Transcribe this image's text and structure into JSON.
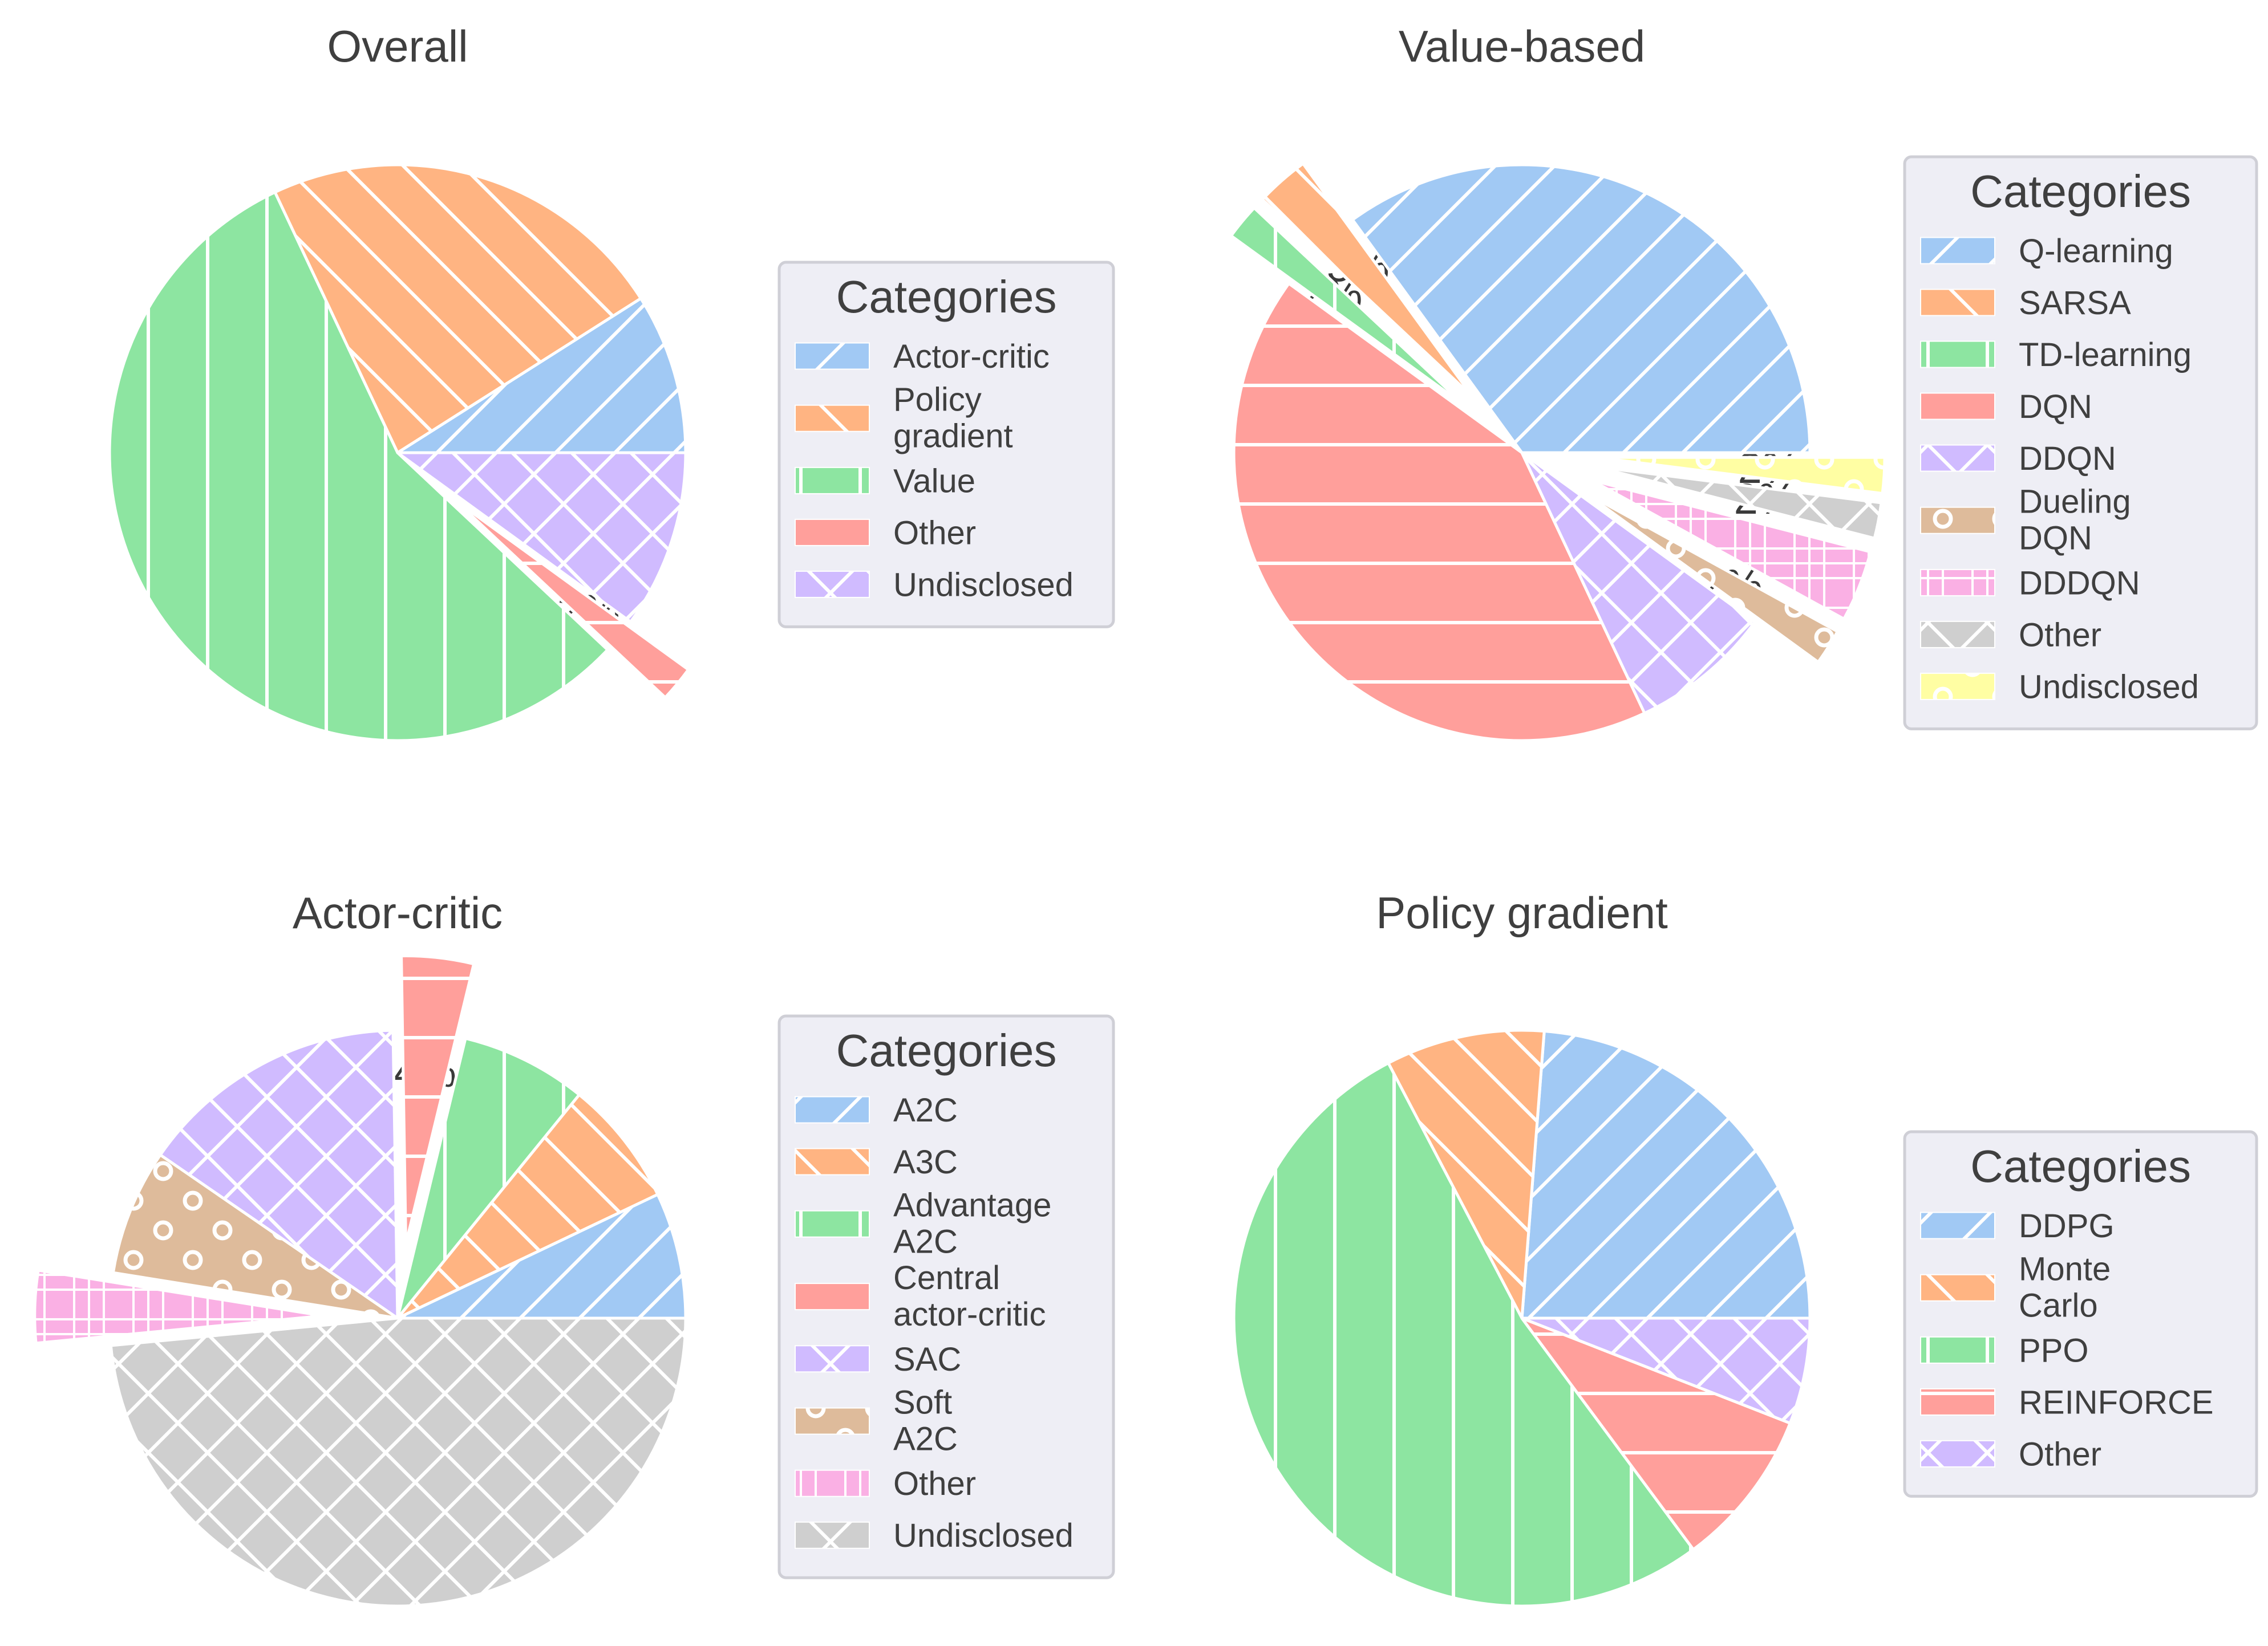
{
  "chart_data": [
    {
      "type": "pie",
      "title": "Overall",
      "legend_title": "Categories",
      "legend_placement": "right",
      "slices": [
        {
          "label": "Actor-critic",
          "display_label": [
            "Actor-critic"
          ],
          "value": 9,
          "pct": "9%",
          "color": "#a1c9f4",
          "hatch": "diagonal"
        },
        {
          "label": "Policy gradient",
          "display_label": [
            "Policy",
            "gradient"
          ],
          "value": 23,
          "pct": "23%",
          "color": "#ffb482",
          "hatch": "antidiagonal"
        },
        {
          "label": "Value",
          "display_label": [
            "Value"
          ],
          "value": 56,
          "pct": "56%",
          "color": "#8de5a1",
          "hatch": "vertical"
        },
        {
          "label": "Other",
          "display_label": [
            "Other"
          ],
          "value": 2,
          "pct": "2%",
          "color": "#ff9f9b",
          "hatch": "horizontal",
          "explode": true
        },
        {
          "label": "Undisclosed",
          "display_label": [
            "Undisclosed"
          ],
          "value": 10,
          "pct": "10%",
          "color": "#d0bbff",
          "hatch": "cross"
        }
      ]
    },
    {
      "type": "pie",
      "title": "Value-based",
      "legend_title": "Categories",
      "legend_placement": "right",
      "slices": [
        {
          "label": "Q-learning",
          "display_label": [
            "Q-learning"
          ],
          "value": 35,
          "pct": "35%",
          "color": "#a1c9f4",
          "hatch": "diagonal"
        },
        {
          "label": "SARSA",
          "display_label": [
            "SARSA"
          ],
          "value": 3,
          "pct": "3%",
          "color": "#ffb482",
          "hatch": "antidiagonal",
          "explode": true
        },
        {
          "label": "TD-learning",
          "display_label": [
            "TD-learning"
          ],
          "value": 2,
          "pct": "2%",
          "color": "#8de5a1",
          "hatch": "vertical",
          "explode": true
        },
        {
          "label": "DQN",
          "display_label": [
            "DQN"
          ],
          "value": 42,
          "pct": "42%",
          "color": "#ff9f9b",
          "hatch": "horizontal"
        },
        {
          "label": "DDQN",
          "display_label": [
            "DDQN"
          ],
          "value": 8,
          "pct": "8%",
          "color": "#d0bbff",
          "hatch": "cross"
        },
        {
          "label": "Dueling DQN",
          "display_label": [
            "Dueling",
            "DQN"
          ],
          "value": 2,
          "pct": "2%",
          "color": "#debb9b",
          "hatch": "circles",
          "explode": true
        },
        {
          "label": "DDDQN",
          "display_label": [
            "DDDQN"
          ],
          "value": 4,
          "pct": "4%",
          "color": "#fab0e4",
          "hatch": "grid",
          "explode": true
        },
        {
          "label": "Other",
          "display_label": [
            "Other"
          ],
          "value": 2,
          "pct": "2%",
          "color": "#cfcfcf",
          "hatch": "cross",
          "explode": true
        },
        {
          "label": "Undisclosed",
          "display_label": [
            "Undisclosed"
          ],
          "value": 2,
          "pct": "2%",
          "color": "#fffea3",
          "hatch": "circles",
          "explode": true
        }
      ]
    },
    {
      "type": "pie",
      "title": "Actor-critic",
      "legend_title": "Categories",
      "legend_placement": "right",
      "slices": [
        {
          "label": "A2C",
          "display_label": [
            "A2C"
          ],
          "value": 7,
          "pct": "7%",
          "color": "#a1c9f4",
          "hatch": "diagonal"
        },
        {
          "label": "A3C",
          "display_label": [
            "A3C"
          ],
          "value": 7,
          "pct": "7%",
          "color": "#ffb482",
          "hatch": "antidiagonal"
        },
        {
          "label": "Advantage A2C",
          "display_label": [
            "Advantage",
            "A2C"
          ],
          "value": 7,
          "pct": "7%",
          "color": "#8de5a1",
          "hatch": "vertical"
        },
        {
          "label": "Central actor-critic",
          "display_label": [
            "Central",
            "actor-critic"
          ],
          "value": 4,
          "pct": "4%",
          "color": "#ff9f9b",
          "hatch": "horizontal",
          "explode": true
        },
        {
          "label": "SAC",
          "display_label": [
            "SAC"
          ],
          "value": 15,
          "pct": "15%",
          "color": "#d0bbff",
          "hatch": "cross"
        },
        {
          "label": "Soft A2C",
          "display_label": [
            "Soft",
            "A2C"
          ],
          "value": 7,
          "pct": "7%",
          "color": "#debb9b",
          "hatch": "circles"
        },
        {
          "label": "Other",
          "display_label": [
            "Other"
          ],
          "value": 4,
          "pct": "4%",
          "color": "#fab0e4",
          "hatch": "grid",
          "explode": true
        },
        {
          "label": "Undisclosed",
          "display_label": [
            "Undisclosed"
          ],
          "value": 48,
          "pct": "48%",
          "color": "#cfcfcf",
          "hatch": "cross"
        }
      ]
    },
    {
      "type": "pie",
      "title": "Policy gradient",
      "legend_title": "Categories",
      "legend_placement": "right",
      "slices": [
        {
          "label": "DDPG",
          "display_label": [
            "DDPG"
          ],
          "value": 24,
          "pct": "24%",
          "color": "#a1c9f4",
          "hatch": "diagonal"
        },
        {
          "label": "Monte Carlo",
          "display_label": [
            "Monte",
            "Carlo"
          ],
          "value": 9,
          "pct": "9%",
          "color": "#ffb482",
          "hatch": "antidiagonal"
        },
        {
          "label": "PPO",
          "display_label": [
            "PPO"
          ],
          "value": 53,
          "pct": "53%",
          "color": "#8de5a1",
          "hatch": "vertical"
        },
        {
          "label": "REINFORCE",
          "display_label": [
            "REINFORCE"
          ],
          "value": 9,
          "pct": "9%",
          "color": "#ff9f9b",
          "hatch": "horizontal"
        },
        {
          "label": "Other",
          "display_label": [
            "Other"
          ],
          "value": 6,
          "pct": "6%",
          "color": "#d0bbff",
          "hatch": "cross"
        }
      ]
    }
  ]
}
